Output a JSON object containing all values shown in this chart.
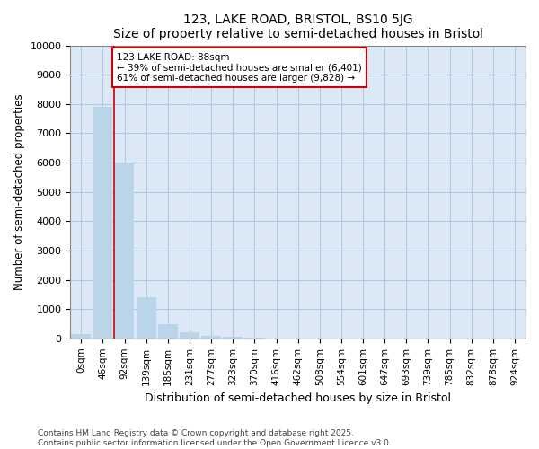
{
  "title": "123, LAKE ROAD, BRISTOL, BS10 5JG",
  "subtitle": "Size of property relative to semi-detached houses in Bristol",
  "xlabel": "Distribution of semi-detached houses by size in Bristol",
  "ylabel": "Number of semi-detached properties",
  "bar_labels": [
    "0sqm",
    "46sqm",
    "92sqm",
    "139sqm",
    "185sqm",
    "231sqm",
    "277sqm",
    "323sqm",
    "370sqm",
    "416sqm",
    "462sqm",
    "508sqm",
    "554sqm",
    "601sqm",
    "647sqm",
    "693sqm",
    "739sqm",
    "785sqm",
    "832sqm",
    "878sqm",
    "924sqm"
  ],
  "bar_values": [
    150,
    7900,
    6000,
    1400,
    500,
    200,
    100,
    50,
    20,
    0,
    0,
    0,
    0,
    0,
    0,
    0,
    0,
    0,
    0,
    0,
    0
  ],
  "bar_color": "#bad4ea",
  "vline_x": 2,
  "vline_color": "#cc0000",
  "annotation_title": "123 LAKE ROAD: 88sqm",
  "annotation_line1": "← 39% of semi-detached houses are smaller (6,401)",
  "annotation_line2": "61% of semi-detached houses are larger (9,828) →",
  "annotation_box_color": "#cc0000",
  "ylim": [
    0,
    10000
  ],
  "yticks": [
    0,
    1000,
    2000,
    3000,
    4000,
    5000,
    6000,
    7000,
    8000,
    9000,
    10000
  ],
  "footer1": "Contains HM Land Registry data © Crown copyright and database right 2025.",
  "footer2": "Contains public sector information licensed under the Open Government Licence v3.0.",
  "bg_color": "#ffffff",
  "plot_bg_color": "#dce8f5",
  "grid_color": "#b0c8e0"
}
